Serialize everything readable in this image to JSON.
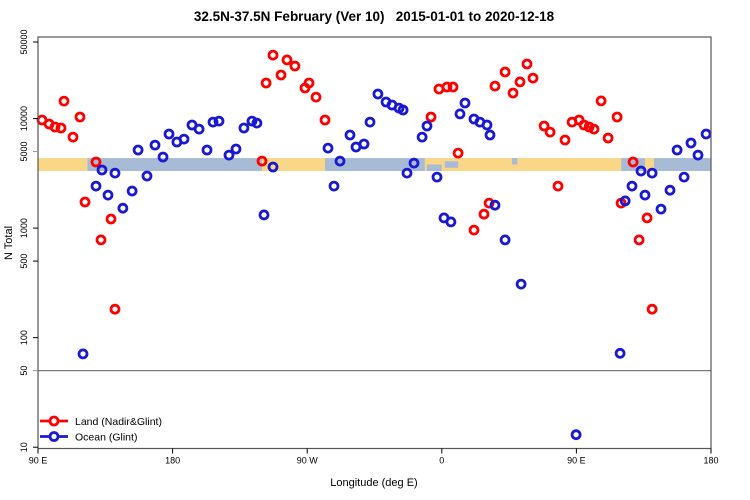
{
  "chart_data": {
    "type": "scatter",
    "title": "32.5N-37.5N February (Ver 10)   2015-01-01 to 2020-12-18",
    "xlabel": "Longitude (deg E)",
    "ylabel": "N Total",
    "x_axis": {
      "range": [
        90,
        540
      ],
      "ticks": [
        {
          "value": 90,
          "label": "90 E"
        },
        {
          "value": 180,
          "label": "180"
        },
        {
          "value": 270,
          "label": "90 W"
        },
        {
          "value": 360,
          "label": "0"
        },
        {
          "value": 450,
          "label": "90 E"
        },
        {
          "value": 540,
          "label": "180"
        }
      ]
    },
    "y_axis": {
      "scale": "log",
      "range": [
        10,
        50000
      ],
      "ticks": [
        {
          "value": 50000,
          "label": "50000",
          "gray": false
        },
        {
          "value": 10000,
          "label": "10000",
          "gray": false
        },
        {
          "value": 5000,
          "label": "5000",
          "gray": true
        },
        {
          "value": 1000,
          "label": "1000",
          "gray": false
        },
        {
          "value": 500,
          "label": "500",
          "gray": false
        },
        {
          "value": 100,
          "label": "100",
          "gray": false
        },
        {
          "value": 50,
          "label": "50",
          "gray": true
        },
        {
          "value": 10,
          "label": "10",
          "gray": false
        }
      ]
    },
    "reference_line": {
      "value": 50,
      "color": "#7a7a7a"
    },
    "coast_band": {
      "value_top": 4360,
      "value_bottom": 3320,
      "land_color": "#FAD687",
      "ocean_color": "#A7BAD6",
      "segments": [
        {
          "from": 90,
          "to": 123,
          "type": "land"
        },
        {
          "from": 123,
          "to": 239.8,
          "type": "ocean"
        },
        {
          "from": 239.8,
          "to": 281.9,
          "type": "land"
        },
        {
          "from": 281.9,
          "to": 348.7,
          "type": "ocean"
        },
        {
          "from": 348.7,
          "to": 479.9,
          "type": "land"
        },
        {
          "from": 479.9,
          "to": 495.9,
          "type": "ocean"
        },
        {
          "from": 495.9,
          "to": 501.9,
          "type": "land"
        },
        {
          "from": 501.9,
          "to": 540,
          "type": "ocean"
        }
      ],
      "ocean_patches": [
        {
          "from": 350,
          "to": 360,
          "pos": "lower"
        },
        {
          "from": 362,
          "to": 371,
          "pos": "mid"
        },
        {
          "from": 407,
          "to": 410.5,
          "pos": "upper"
        }
      ]
    },
    "series": [
      {
        "name": "Land (Nadir&Glint)",
        "color": "#ff0000",
        "points": [
          [
            107.4,
            14450
          ],
          [
            118.1,
            10330
          ],
          [
            92.7,
            9700
          ],
          [
            97.4,
            8920
          ],
          [
            101.4,
            8370
          ],
          [
            105.4,
            8200
          ],
          [
            113.4,
            6780
          ],
          [
            128.8,
            4010
          ],
          [
            121.4,
            1730
          ],
          [
            138.8,
            1210
          ],
          [
            132.1,
            780
          ],
          [
            141.5,
            182
          ],
          [
            239.8,
            4090
          ],
          [
            247.1,
            38000
          ],
          [
            256.5,
            34300
          ],
          [
            261.8,
            30200
          ],
          [
            252.5,
            25000
          ],
          [
            242.5,
            21100
          ],
          [
            268.5,
            19000
          ],
          [
            271.2,
            21100
          ],
          [
            275.9,
            15700
          ],
          [
            281.9,
            9700
          ],
          [
            358.1,
            18600
          ],
          [
            363.5,
            19400
          ],
          [
            367.5,
            19400
          ],
          [
            352.8,
            10330
          ],
          [
            370.9,
            4840
          ],
          [
            395.6,
            19800
          ],
          [
            381.5,
            960
          ],
          [
            388.2,
            1340
          ],
          [
            391.6,
            1690
          ],
          [
            417.0,
            31500
          ],
          [
            402.3,
            26600
          ],
          [
            421.0,
            23400
          ],
          [
            412.3,
            21600
          ],
          [
            407.6,
            17100
          ],
          [
            466.5,
            14500
          ],
          [
            428.4,
            8550
          ],
          [
            432.4,
            7530
          ],
          [
            447.1,
            9290
          ],
          [
            451.8,
            9700
          ],
          [
            455.1,
            8730
          ],
          [
            458.5,
            8370
          ],
          [
            461.8,
            8020
          ],
          [
            442.4,
            6370
          ],
          [
            437.7,
            2420
          ],
          [
            471.2,
            6640
          ],
          [
            477.2,
            10330
          ],
          [
            487.9,
            4010
          ],
          [
            497.3,
            1240
          ],
          [
            491.9,
            780
          ],
          [
            500.6,
            182
          ],
          [
            479.9,
            1690
          ]
        ]
      },
      {
        "name": "Ocean (Glint)",
        "color": "#1919d2",
        "points": [
          [
            156.9,
            5160
          ],
          [
            132.8,
            3390
          ],
          [
            141.5,
            3180
          ],
          [
            162.9,
            2990
          ],
          [
            128.8,
            2420
          ],
          [
            152.9,
            2180
          ],
          [
            136.8,
            2000
          ],
          [
            146.8,
            1520
          ],
          [
            120.1,
            71
          ],
          [
            168.2,
            5730
          ],
          [
            173.6,
            4460
          ],
          [
            177.6,
            7230
          ],
          [
            182.9,
            6110
          ],
          [
            187.6,
            6500
          ],
          [
            193.0,
            8730
          ],
          [
            197.7,
            8020
          ],
          [
            207.0,
            9290
          ],
          [
            211.0,
            9490
          ],
          [
            203.0,
            5160
          ],
          [
            217.7,
            4640
          ],
          [
            222.4,
            5270
          ],
          [
            227.7,
            8200
          ],
          [
            233.1,
            9490
          ],
          [
            236.4,
            9100
          ],
          [
            241.1,
            1320
          ],
          [
            247.1,
            3610
          ],
          [
            298.6,
            7080
          ],
          [
            302.6,
            5500
          ],
          [
            308.0,
            5860
          ],
          [
            283.9,
            5380
          ],
          [
            291.9,
            4090
          ],
          [
            287.9,
            2420
          ],
          [
            312.0,
            9290
          ],
          [
            317.3,
            16750
          ],
          [
            322.7,
            14160
          ],
          [
            326.7,
            13300
          ],
          [
            331.4,
            12470
          ],
          [
            334.1,
            11970
          ],
          [
            350.1,
            8550
          ],
          [
            346.8,
            6780
          ],
          [
            375.5,
            13870
          ],
          [
            372.2,
            11020
          ],
          [
            381.5,
            9910
          ],
          [
            385.5,
            9290
          ],
          [
            390.2,
            8730
          ],
          [
            392.2,
            7080
          ],
          [
            341.4,
            3920
          ],
          [
            336.7,
            3180
          ],
          [
            356.8,
            2920
          ],
          [
            361.5,
            1240
          ],
          [
            366.1,
            1140
          ],
          [
            395.6,
            1620
          ],
          [
            402.3,
            780
          ],
          [
            536.7,
            7230
          ],
          [
            526.6,
            5980
          ],
          [
            517.3,
            5160
          ],
          [
            531.3,
            4640
          ],
          [
            493.2,
            3320
          ],
          [
            500.6,
            3180
          ],
          [
            522.0,
            2920
          ],
          [
            487.2,
            2420
          ],
          [
            512.6,
            2220
          ],
          [
            495.9,
            2000
          ],
          [
            482.6,
            1770
          ],
          [
            506.6,
            1490
          ],
          [
            413.0,
            308
          ],
          [
            479.2,
            72
          ],
          [
            449.8,
            13
          ]
        ]
      }
    ],
    "legend": {
      "position": "bottom-left"
    },
    "grid": "off",
    "marker": {
      "shape": "open-circle",
      "radius": 4,
      "stroke_width": 2.8
    },
    "frame_color": "#555555"
  }
}
